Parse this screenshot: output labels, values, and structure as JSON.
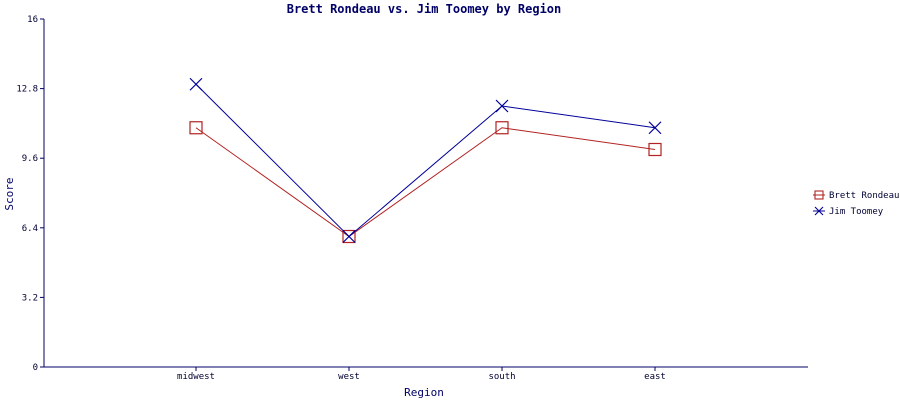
{
  "chart_data": {
    "type": "line",
    "title": "Brett Rondeau vs. Jim Toomey by Region",
    "xlabel": "Region",
    "ylabel": "Score",
    "categories": [
      "midwest",
      "west",
      "south",
      "east"
    ],
    "ylim": [
      0,
      16
    ],
    "yticks": [
      "0",
      "3.2",
      "6.4",
      "9.6",
      "12.8",
      "16"
    ],
    "ytick_values": [
      0,
      3.2,
      6.4,
      9.6,
      12.8,
      16
    ],
    "grid": false,
    "legend_position": "right",
    "series": [
      {
        "name": "Brett Rondeau",
        "values": [
          11,
          6,
          11,
          10
        ],
        "color": "#b22222",
        "marker": "square"
      },
      {
        "name": "Jim Toomey",
        "values": [
          13,
          6,
          12,
          11
        ],
        "color": "#000099",
        "marker": "x"
      }
    ]
  },
  "colors": {
    "axis": "#000066",
    "background": "#ffffff"
  }
}
